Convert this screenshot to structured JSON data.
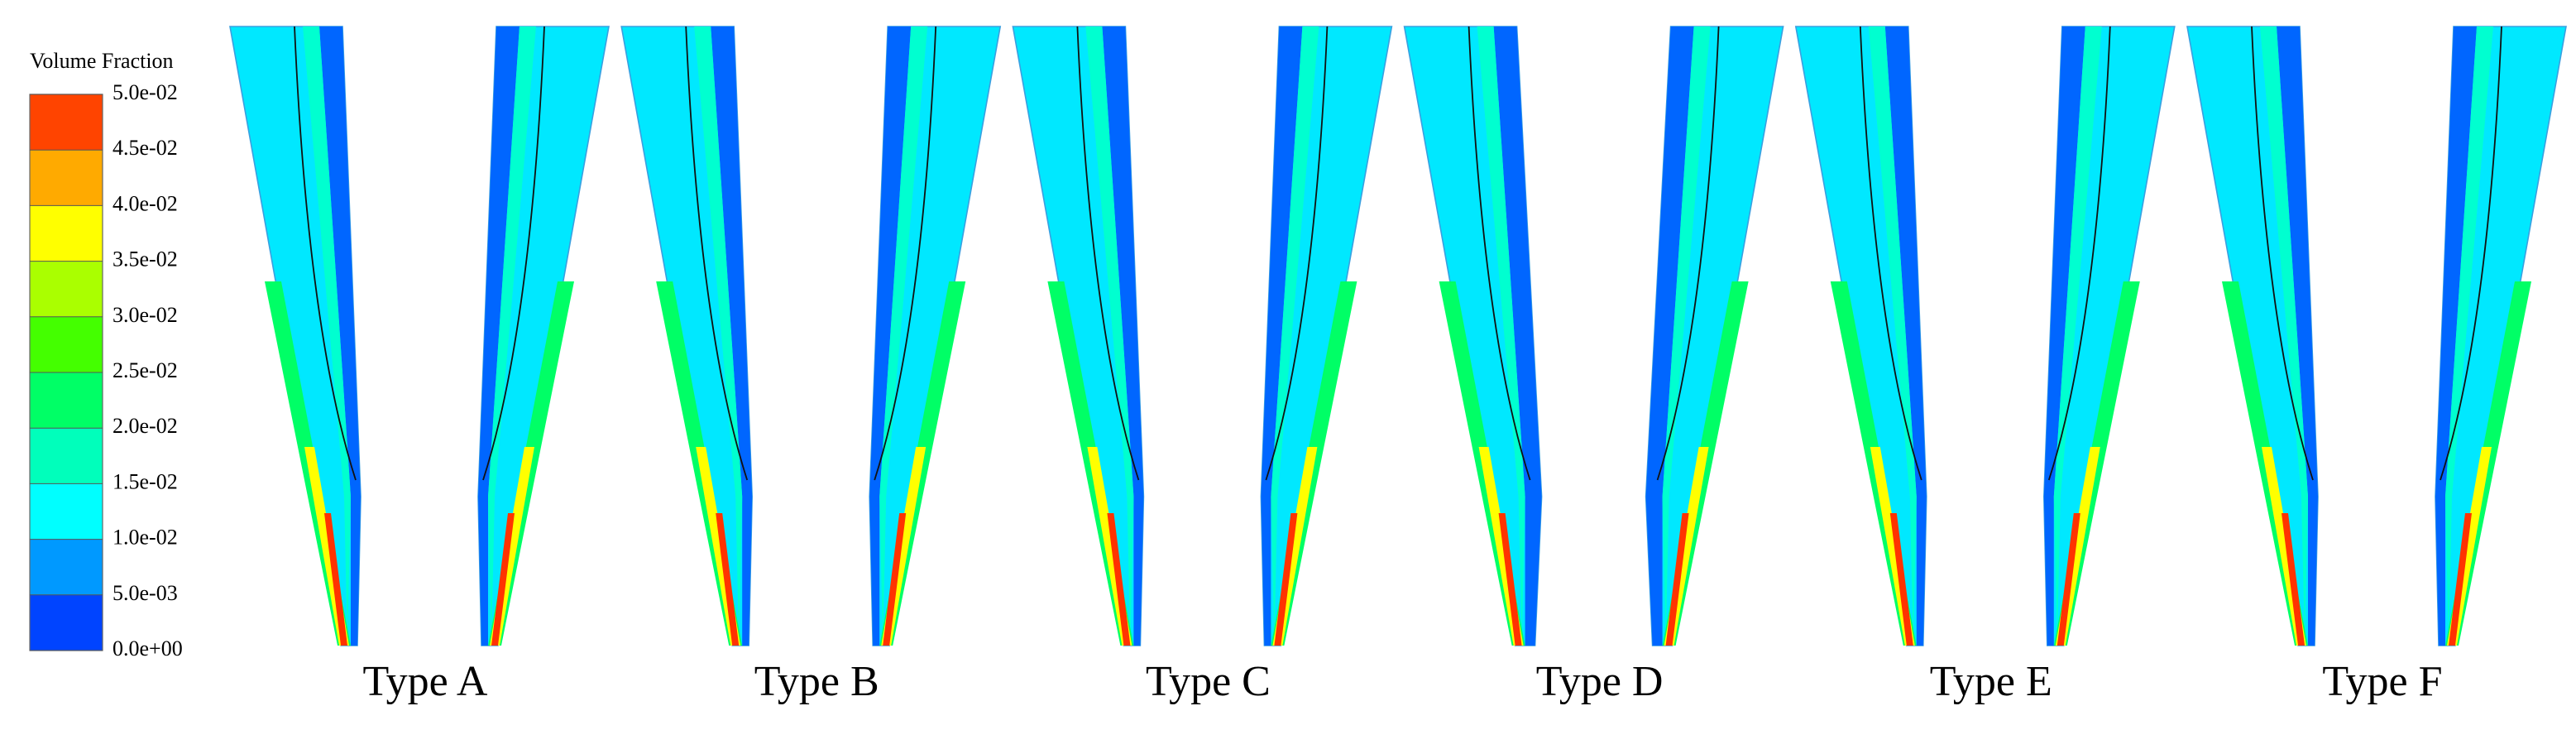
{
  "legend": {
    "title": "Volume Fraction",
    "range": [
      0,
      0.05
    ],
    "ticks": [
      {
        "value": 0,
        "label": "0.0e+00"
      },
      {
        "value": 0.005,
        "label": "5.0e-03"
      },
      {
        "value": 0.01,
        "label": "1.0e-02"
      },
      {
        "value": 0.015,
        "label": "1.5e-02"
      },
      {
        "value": 0.02,
        "label": "2.0e-02"
      },
      {
        "value": 0.025,
        "label": "2.5e-02"
      },
      {
        "value": 0.03,
        "label": "3.0e-02"
      },
      {
        "value": 0.035,
        "label": "3.5e-02"
      },
      {
        "value": 0.04,
        "label": "4.0e-02"
      },
      {
        "value": 0.045,
        "label": "4.5e-02"
      },
      {
        "value": 0.05,
        "label": "5.0e-02"
      }
    ],
    "colors": [
      "#0044ff",
      "#0099ff",
      "#00ffff",
      "#00ffbb",
      "#00ff66",
      "#44ff00",
      "#aaff00",
      "#ffff00",
      "#ffaa00",
      "#ff4400"
    ]
  },
  "panels": [
    {
      "label": "Type A"
    },
    {
      "label": "Type B"
    },
    {
      "label": "Type C"
    },
    {
      "label": "Type D"
    },
    {
      "label": "Type E"
    },
    {
      "label": "Type F"
    }
  ]
}
